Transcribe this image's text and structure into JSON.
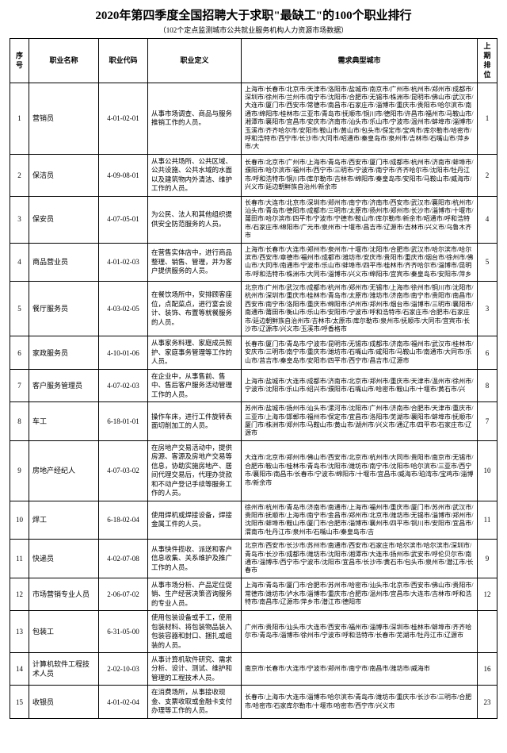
{
  "title": "2020年第四季度全国招聘大于求职\"最缺工\"的100个职业排行",
  "subtitle": "（102个定点监测城市公共就业服务机构人力资源市场数据）",
  "headers": {
    "seq": "序号",
    "name": "职业名称",
    "code": "职业代码",
    "def": "职业定义",
    "cities": "需求典型城市",
    "prev": "上期排位"
  },
  "rows": [
    {
      "seq": "1",
      "name": "营销员",
      "code": "4-01-02-01",
      "def": "从事市场调查、商品与服务推销工作的人员。",
      "cities": "上海市/长春市/北京市/天津市/洛阳市/盐城市/南京市/广州市/杭州市/郑州市/成都市/深圳市/徐州市/兰州市/南宁市/沈阳市/合肥市/无锡市/株洲市/昆明市/佛山市/武汉市/大连市/厦门市/西安市/常德市/南昌市/石家庄市/淄博市/重庆市/贵阳市/哈尔滨市/南通市/绵阳市/桂林市/三亚市/青岛市/抚顺市/铜川市/德阳市/许昌市/福州市/马鞍山市/湘潭市/襄阳市/宜昌市/安庆市/济南市/汕头市/乐山市/宁波市/温州市/蚌埠市/淄博市/玉溪市/齐齐哈尔市/安阳市/鞍山市/黄山市/包头市/保定市/宝鸡市/库尔勒市/哈密市/呼和浩特市/西宁市/长沙市/大同市/昭通市/秦皇岛市/泉州市/吉林市/石嘴山市/萍乡市/大",
      "prev": "1"
    },
    {
      "seq": "2",
      "name": "保洁员",
      "code": "4-09-08-01",
      "def": "从事公共场所、公共区域、公共设施、公共水域的水面以及建筑物内外清洁、维护工作的人员。",
      "cities": "长春市/北京市/广州市/上海市/青岛市/西安市/厦门市/成都市/杭州市/济南市/蚌埠市/濮阳市/哈尔滨市/福州市/西宁市/三明市/宁波市/南宁市/齐齐哈尔市/沈阳市/牡丹江市/呼和浩特市/铜川市/库尔勒市/吉林市/绵阳市/秦皇岛市/安阳市/马鞍山市/威海市/兴义市/延边朝鲜族自治州/新余市",
      "prev": "2"
    },
    {
      "seq": "3",
      "name": "保安员",
      "code": "4-07-05-01",
      "def": "为公民、法人和其他组织提供安全防范服务的人员。",
      "cities": "长春市/大连市/北京市/深圳市/郑州市/南宁市/济南市/西安市/武汉市/襄阳市/杭州市/汕头市/青岛市/德阳市/成都市/三明市/太原市/扬州市/郑州市/长沙市/淄博市/十堰市/莆田市/哈尔滨市/四平市/宁波市/宁德市/鞍山市/库尔勒市/新余市/昭通市/呼和浩特市/石家庄市/绵阳市/广元市/泉州市/十堰市/昌吉市/辽源市/吉林市/兴义市/乌鲁木齐市",
      "prev": "4"
    },
    {
      "seq": "4",
      "name": "商品营业员",
      "code": "4-01-02-03",
      "def": "在营售实体店中，进行商品整理、销售、管理，并为客户提供服务的人员。",
      "cities": "上海市/长春市/大连市/郑州市/泉州市/十堰市/沈阳市/合肥市/武汉市/哈尔滨市/哈尔滨市/西安市/章德市/福州市/成都市/潍坊市/安庆市/贵阳市/重庆市/烟台市/徐州市/佛山市/大同市/南通市/宁波市/乐山市/蚌埠市/四平市/桂林市/齐齐哈尔市/淄博市/昆明市/呼和浩特市/株洲市/大同市/淄博市/兴义市/绵阳市/宜宾市/秦皇岛市/安阳市/萍乡",
      "prev": "5"
    },
    {
      "seq": "5",
      "name": "餐厅服务员",
      "code": "4-03-02-05",
      "def": "在餐饮场所中，安排顾客座位，点配菜点，进行宴会设计、装饰、布置等就餐服务的人员。",
      "cities": "北京市/广州市/武汉市/成都市/杭州市/郑州市/无锡市/上海市/徐州市/铜川市/沈阳市/杭州市/深圳市/重庆市/桂林市/青岛市/太原市/潍坊市/济南市/南宁市/贵阳市/南昌市/西安市/南宁市/洛阳市/重庆市/绵阳市/泸州市/郑州市/烟台市/淄博市/三明市/襄阳市/南通市/莆田市/衡山市/乐山市/安阳市/宁波市/呼和浩特市/石家庄市/合肥市/石家庄市/延边朝鲜族自治州市/吉林市/太原市/库尔勒市/泉州市/抚顺市/大同市/宜宾市/长沙市/辽源市/兴义市/玉溪市/呼香格市",
      "prev": "3"
    },
    {
      "seq": "6",
      "name": "家政服务员",
      "code": "4-10-01-06",
      "def": "从事家务料理、家庭成员照护、家庭事务管理等工作的人员。",
      "cities": "长春市/厦门市/青岛市/宁波市/昆明市/无锡市/成都市/济南市/福州市/武汉市/桂林市/安庆市/三明市/南宁市/重庆市/潍坊市/石嘴山市/咸阳市/马鞍山市/南通市/大同市/乐山市/莒吉市/秦皇岛市/安阳市/四平市/西宁市/昌吉市/辽源市",
      "prev": "6"
    },
    {
      "seq": "7",
      "name": "客户服务管理员",
      "code": "4-07-02-03",
      "def": "在企业中，从事售前、售中、售后客户服务活动管理工作的人员。",
      "cities": "上海市/盐城市/大连市/成都市/济南市/北京市/郑州市/重庆市/天津市/温州市/徐州市/宁波市/沈阳市/乐山市/绍兴市/濮阳市/石嘴山市/哈密市/鞍山市/十堰市/黄石市/兴",
      "prev": "8"
    },
    {
      "seq": "8",
      "name": "车工",
      "code": "6-18-01-01",
      "def": "操作车床，进行工件旋转表面切削加工的人员。",
      "cities": "苏州市/盐城市/扬州市/汕头市/漯河市/沈阳市/广州市/济南市/合肥市/天津市/重庆市/三亚市/上海市/邯郸市/福州市/保定市/宜昌市/洛阳市/芜湖市/襄阳市/蚌埠市/抚顺市/厦门市/株洲市/郑州市/马鞍山市/黄山市/湖州市/兴义市/通辽市/四平市/石家庄市/辽源市",
      "prev": "7"
    },
    {
      "seq": "9",
      "name": "房地产经纪人",
      "code": "4-07-03-02",
      "def": "在房地产交易活动中，提供房源、客源及房地产交易等信息，协助实施房地产、居间代理交易后，代理办贷款和不动产登记手续等服务工作的人员。",
      "cities": "大连市/北京市/郑州市/佛山市/西安市/北京市/杭州市/大同市/贵阳市/南京市/无锡市/合肥市/鞍山市/桂林市/青岛市/沈阳市/潍坊市/南宁市/沈阳市/哈尔滨市/三亚市/西宁市/襄阳市/南昌市/长春市/宁波市/绵阳市/十堰市/宜昌市/威海市/珀湾市/宝鸡市/淄博市/新余市",
      "prev": "10"
    },
    {
      "seq": "10",
      "name": "焊工",
      "code": "6-18-02-04",
      "def": "使用焊机或焊接设备，焊接金属工件的人员。",
      "cities": "徐州市/杭州市/青岛市/济南市/南通市/上海市/福州市/重庆市/厦门市/苏州市/武汉市/贵阳市/抚顺市/上海市/南宁市/金昌市/郑州市/北京市/潍坊市/无锡市/淄博市/郑州市/沈阳市/蚌埠市/鞍山市/厦门市/合肥市/淄博市/襄州市/四平市/铜川市/安阳市/宜昌市/渭南市/牡丹江市/泉州市/石嘴山市/秦皇岛市/吉",
      "prev": "11"
    },
    {
      "seq": "11",
      "name": "快递员",
      "code": "4-02-07-08",
      "def": "从事快件揽收、派送和客户信息收集、关系维护及推广工作的人员。",
      "cities": "北京市/西安市/长沙市/苏州市/南通市/西安市/石家庄市/哈尔滨市/哈尔滨市/深圳市/青岛市/长沙市/成都市/潍坊市/沈阳市/湘潭市/大连市/扬州市/武安市/呼伦贝尔市/南通市/淄博市/西宁市/宁波市/沈阳市/宜昌市/长沙市/黄石市/包头市/泉州市/潜江市/长春市",
      "prev": "9"
    },
    {
      "seq": "12",
      "name": "市场营销专业人员",
      "code": "2-06-07-02",
      "def": "从事市场分析、产品定位促销、生产经营决策咨询服务的专业人员。",
      "cities": "上海市/青岛市/厦门市/合肥市/苏州市/哈密市/汕头市/北京市/西安市/佛山市/贵阳市/常德市/潍坊市/泸水市/淄博市/重庆市/合肥市/温州市/宜昌市/大连市/吉林市/呼和浩特市/南昌市/辽源市/萍乡市/潜江市/德阳市",
      "prev": "12"
    },
    {
      "seq": "13",
      "name": "包装工",
      "code": "6-31-05-00",
      "def": "使用包装设备或手工，使用包装材料、将包装物品装入包装容器和封口、捆扎或组装的人员。",
      "cities": "广州市/贵阳市/汕头市/大连市/西安市/福州市/淄博市/深圳市/桂林市/蚌埠市/齐齐哈尔市/青岛市/淄博市/徐州市/宁波市/呼和浩特市/长春市/芜湖市/牡丹江市/辽源市",
      "prev": ""
    },
    {
      "seq": "14",
      "name": "计算机软件工程技术人员",
      "code": "2-02-10-03",
      "def": "从事计算机软件研究、需求分析、设计、测试、维护和管理的工程技术人员。",
      "cities": "南京市/长春市/大连市/宁波市/郑州市/南宁市/南昌市/潍坊市/威海市",
      "prev": "16"
    },
    {
      "seq": "15",
      "name": "收银员",
      "code": "4-01-02-04",
      "def": "在消费场所，从事接收现金、支票收取或金融卡支付办理等工作的人员。",
      "cities": "长春市/上海市/大连市/淄博市/哈尔滨市/青岛市/潍坊市/重庆市/长沙市/三明市/合肥市/哈密市/石家库尔勒市/十堰市/哈密市/西宁市/兴义市",
      "prev": "23"
    }
  ]
}
